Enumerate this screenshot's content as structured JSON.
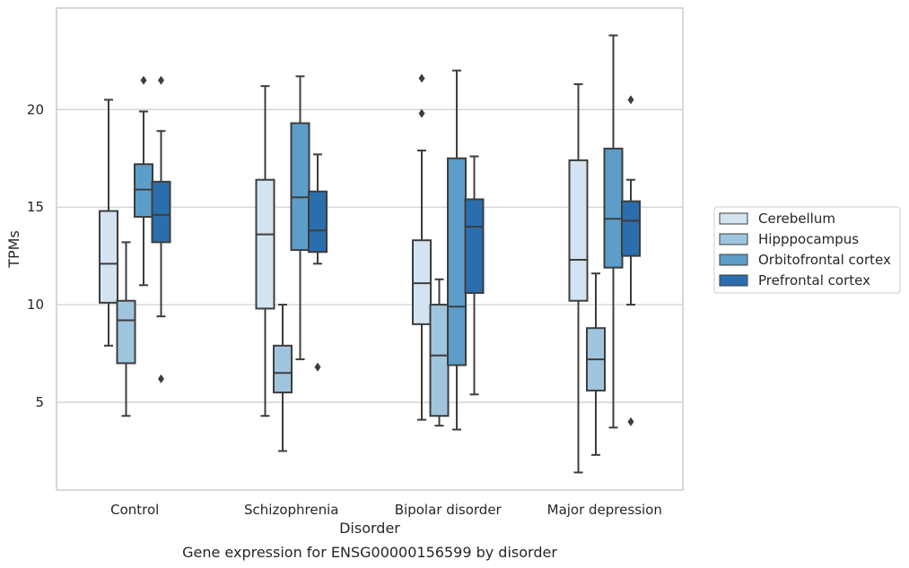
{
  "chart_data": {
    "type": "box",
    "title": "",
    "caption": "Gene expression for ENSG00000156599 by disorder",
    "xlabel": "Disorder",
    "ylabel": "TPMs",
    "ylim": [
      0.5,
      25.2
    ],
    "yticks": [
      5,
      10,
      15,
      20
    ],
    "grid": true,
    "legend_position": "right, outside",
    "categories": [
      "Control",
      "Schizophrenia",
      "Bipolar disorder",
      "Major depression"
    ],
    "series": [
      {
        "name": "Cerebellum",
        "color": "#d3e3f1",
        "boxes": [
          {
            "whislo": 7.9,
            "q1": 10.1,
            "med": 12.1,
            "q3": 14.8,
            "whishi": 20.5,
            "fliers": []
          },
          {
            "whislo": 4.3,
            "q1": 9.8,
            "med": 13.6,
            "q3": 16.4,
            "whishi": 21.2,
            "fliers": []
          },
          {
            "whislo": 4.1,
            "q1": 9.0,
            "med": 11.1,
            "q3": 13.3,
            "whishi": 17.9,
            "fliers": [
              19.8,
              21.6
            ]
          },
          {
            "whislo": 1.4,
            "q1": 10.2,
            "med": 12.3,
            "q3": 17.4,
            "whishi": 21.3,
            "fliers": []
          }
        ]
      },
      {
        "name": "Hipppocampus",
        "color": "#9fc5de",
        "boxes": [
          {
            "whislo": 4.3,
            "q1": 7.0,
            "med": 9.2,
            "q3": 10.2,
            "whishi": 13.2,
            "fliers": []
          },
          {
            "whislo": 2.5,
            "q1": 5.5,
            "med": 6.5,
            "q3": 7.9,
            "whishi": 10.0,
            "fliers": []
          },
          {
            "whislo": 3.8,
            "q1": 4.3,
            "med": 7.4,
            "q3": 10.0,
            "whishi": 11.3,
            "fliers": []
          },
          {
            "whislo": 2.3,
            "q1": 5.6,
            "med": 7.2,
            "q3": 8.8,
            "whishi": 11.6,
            "fliers": []
          }
        ]
      },
      {
        "name": "Orbitofrontal cortex",
        "color": "#5c9ec9",
        "boxes": [
          {
            "whislo": 11.0,
            "q1": 14.5,
            "med": 15.9,
            "q3": 17.2,
            "whishi": 19.9,
            "fliers": [
              21.5
            ]
          },
          {
            "whislo": 7.2,
            "q1": 12.8,
            "med": 15.5,
            "q3": 19.3,
            "whishi": 21.7,
            "fliers": []
          },
          {
            "whislo": 3.6,
            "q1": 6.9,
            "med": 9.9,
            "q3": 17.5,
            "whishi": 22.0,
            "fliers": []
          },
          {
            "whislo": 3.7,
            "q1": 11.9,
            "med": 14.4,
            "q3": 18.0,
            "whishi": 23.8,
            "fliers": []
          }
        ]
      },
      {
        "name": "Prefrontal cortex",
        "color": "#2b6ead",
        "boxes": [
          {
            "whislo": 9.4,
            "q1": 13.2,
            "med": 14.6,
            "q3": 16.3,
            "whishi": 18.9,
            "fliers": [
              6.2,
              21.5
            ]
          },
          {
            "whislo": 12.1,
            "q1": 12.7,
            "med": 13.8,
            "q3": 15.8,
            "whishi": 17.7,
            "fliers": [
              6.8
            ]
          },
          {
            "whislo": 5.4,
            "q1": 10.6,
            "med": 14.0,
            "q3": 15.4,
            "whishi": 17.6,
            "fliers": []
          },
          {
            "whislo": 10.0,
            "q1": 12.5,
            "med": 14.3,
            "q3": 15.3,
            "whishi": 16.4,
            "fliers": [
              4.0,
              20.5
            ]
          }
        ]
      }
    ]
  }
}
